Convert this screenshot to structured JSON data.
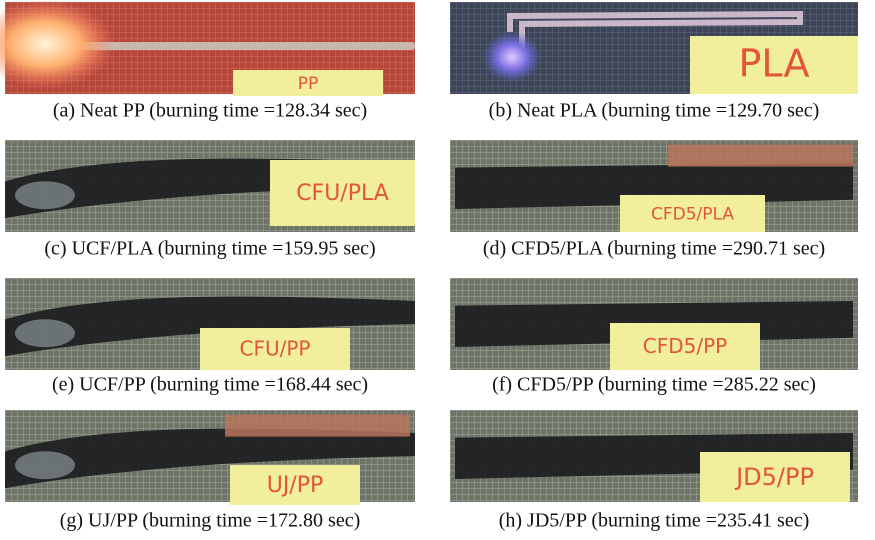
{
  "panels": [
    {
      "label": "PP",
      "caption": "(a) Neat PP (burning time =128.34 sec)"
    },
    {
      "label": "PLA",
      "caption": "(b) Neat PLA (burning time =129.70 sec)"
    },
    {
      "label": "CFU/PLA",
      "caption": "(c) UCF/PLA (burning time =159.95 sec)"
    },
    {
      "label": "CFD5/PLA",
      "caption": "(d) CFD5/PLA (burning time =290.71 sec)"
    },
    {
      "label": "CFU/PP",
      "caption": "(e) UCF/PP (burning time =168.44 sec)"
    },
    {
      "label": "CFD5/PP",
      "caption": "(f) CFD5/PP (burning time =285.22 sec)"
    },
    {
      "label": "UJ/PP",
      "caption": "(g) UJ/PP (burning time =172.80 sec)"
    },
    {
      "label": "JD5/PP",
      "caption": "(h) JD5/PP (burning time =235.41 sec)"
    }
  ]
}
